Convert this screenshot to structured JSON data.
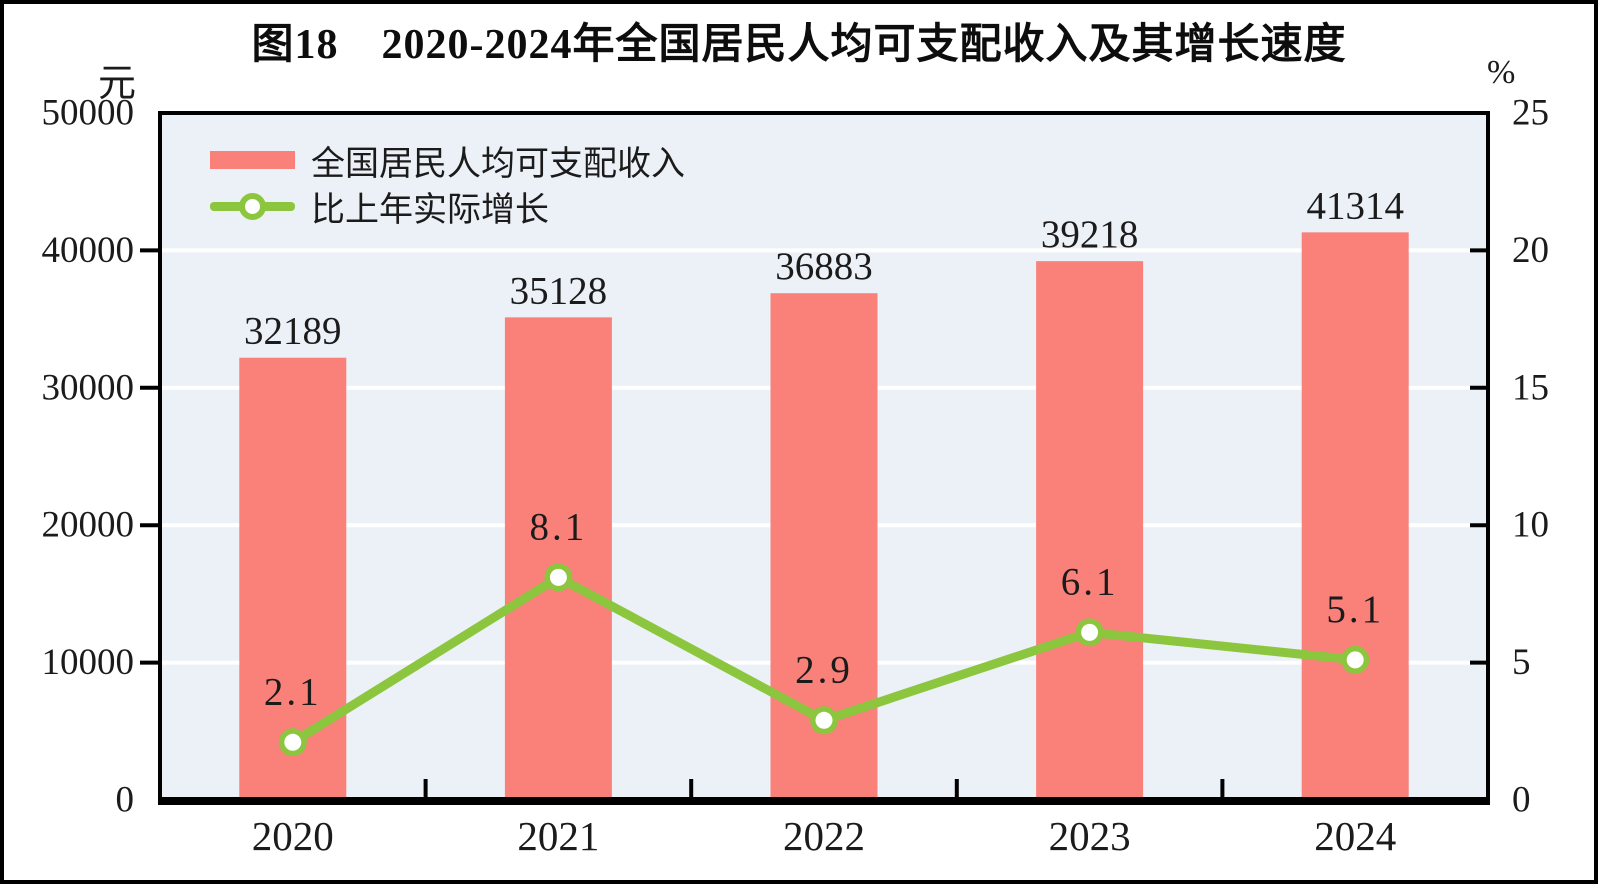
{
  "figure": {
    "title": "图18　2020-2024年全国居民人均可支配收入及其增长速度"
  },
  "left_axis": {
    "unit": "元",
    "min": 0,
    "max": 50000,
    "ticks": [
      0,
      10000,
      20000,
      30000,
      40000,
      50000
    ]
  },
  "right_axis": {
    "unit": "%",
    "min": 0,
    "max": 25,
    "ticks": [
      0,
      5,
      10,
      15,
      20,
      25
    ]
  },
  "legend": {
    "bar_label": "全国居民人均可支配收入",
    "line_label": "比上年实际增长"
  },
  "colors": {
    "bar": "#f9817a",
    "line": "#8cc63e",
    "marker_fill": "#ffffff",
    "plot_bg": "#ebf1f6",
    "grid": "#ffffff",
    "axis": "#000000",
    "text": "#1b1b1b"
  },
  "chart_data": {
    "type": "bar",
    "title": "图18　2020-2024年全国居民人均可支配收入及其增长速度",
    "categories": [
      "2020",
      "2021",
      "2022",
      "2023",
      "2024"
    ],
    "series": [
      {
        "name": "全国居民人均可支配收入",
        "type": "bar",
        "axis": "left",
        "unit": "元",
        "values": [
          32189,
          35128,
          36883,
          39218,
          41314
        ]
      },
      {
        "name": "比上年实际增长",
        "type": "line",
        "axis": "right",
        "unit": "%",
        "values": [
          2.1,
          8.1,
          2.9,
          6.1,
          5.1
        ],
        "marker": "circle-white-fill-green-ring"
      }
    ],
    "ylabel": "元",
    "y2label": "%",
    "ylim": [
      0,
      50000
    ],
    "y2lim": [
      0,
      25
    ],
    "grid": true,
    "grid_color": "white-horizontal",
    "legend_position": "top-left",
    "plot_background": "light-blue"
  }
}
